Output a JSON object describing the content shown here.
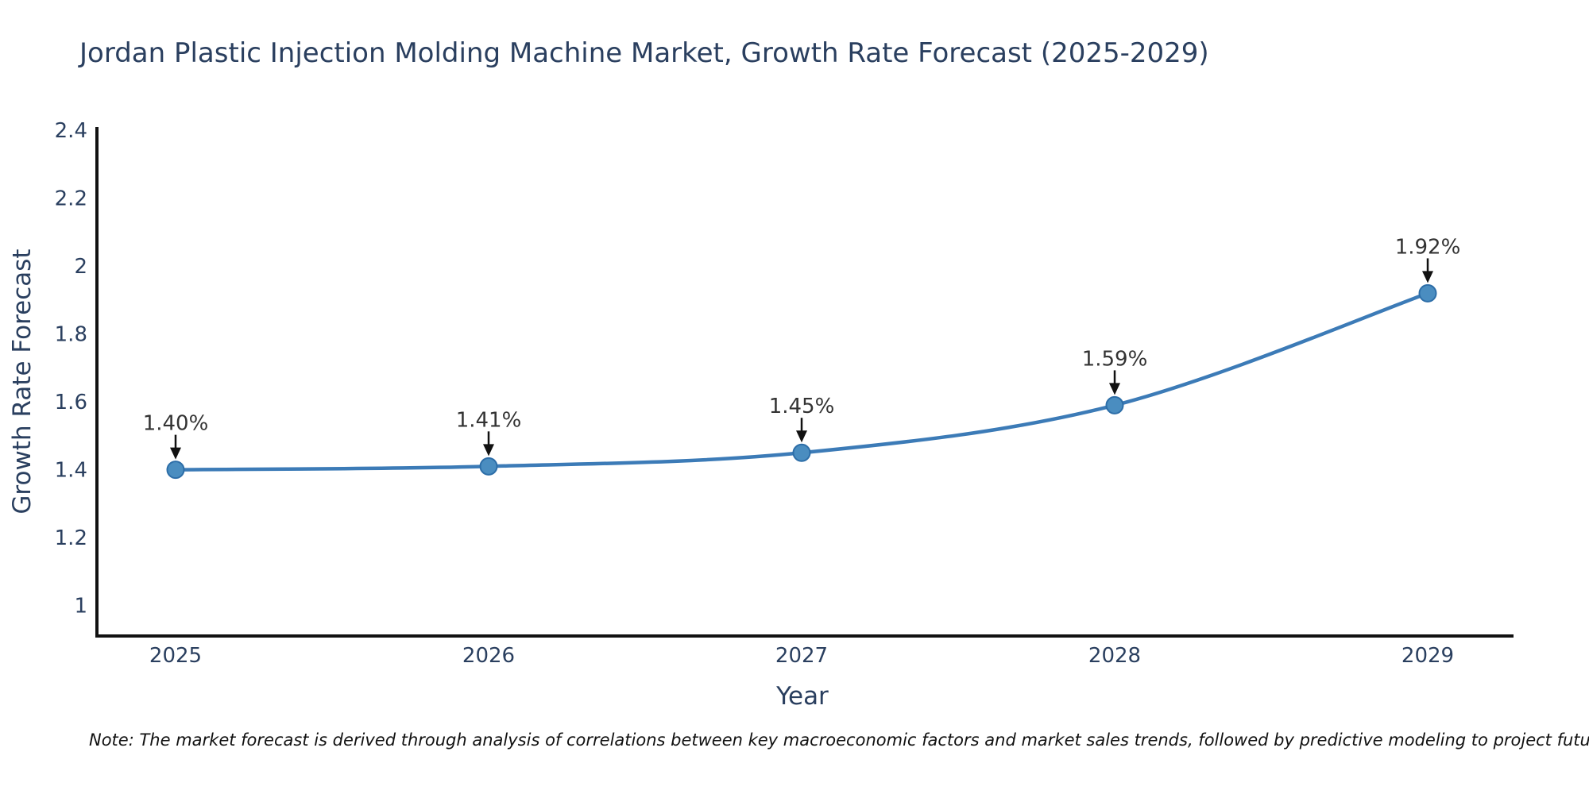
{
  "chart_data": {
    "type": "line",
    "title": "Jordan Plastic Injection Molding Machine Market, Growth Rate Forecast (2025-2029)",
    "xlabel": "Year",
    "ylabel": "Growth Rate Forecast",
    "categories": [
      "2025",
      "2026",
      "2027",
      "2028",
      "2029"
    ],
    "series": [
      {
        "name": "Growth Rate Forecast",
        "values": [
          1.4,
          1.41,
          1.45,
          1.59,
          1.92
        ]
      }
    ],
    "point_labels": [
      "1.40%",
      "1.41%",
      "1.45%",
      "1.59%",
      "1.92%"
    ],
    "yticks": [
      1,
      1.2,
      1.4,
      1.6,
      1.8,
      2,
      2.2,
      2.4
    ],
    "ytick_labels": [
      "1",
      "1.2",
      "1.4",
      "1.6",
      "1.8",
      "2",
      "2.2",
      "2.4"
    ],
    "ylim": [
      0.91,
      2.41
    ],
    "grid": false,
    "legend_position": "none",
    "line_shape": "spline",
    "colors": {
      "line": "#3c7bb7",
      "marker_fill": "#4a8dc0",
      "marker_edge": "#2d6ea8",
      "axis_line": "#111111",
      "tick_label": "#2a3f5f",
      "axis_title": "#2a3f5f",
      "title_text": "#2a3f5f",
      "annotation_text": "#333333",
      "annotation_arrow": "#111111",
      "background": "#ffffff"
    }
  },
  "note": "Note: The market forecast is derived through analysis of correlations between key macroeconomic factors and market sales trends, followed by predictive modeling to project future sales"
}
